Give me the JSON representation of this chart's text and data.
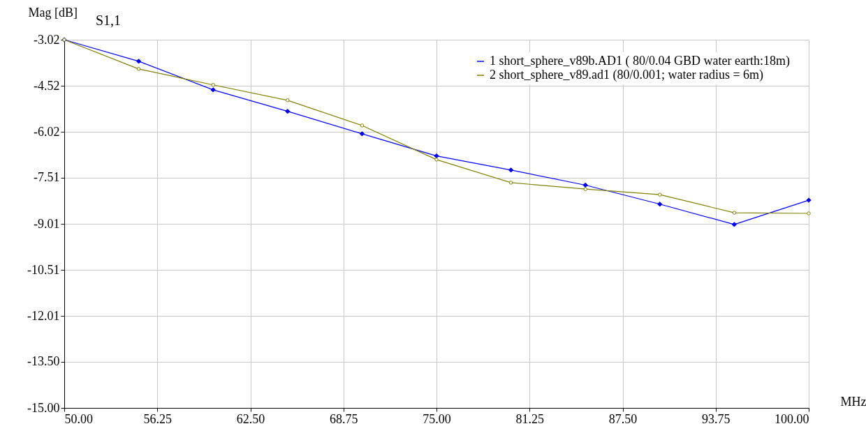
{
  "chart_data": {
    "type": "line",
    "title": "S1,1",
    "ylabel": "Mag [dB]",
    "xlabel": "MHz",
    "x": [
      50,
      55,
      60,
      65,
      70,
      75,
      80,
      85,
      90,
      95,
      100
    ],
    "series": [
      {
        "name": "1 short_sphere_v89b.AD1 ( 80/0.04  GBD water earth:18m)",
        "color": "#0000ff",
        "marker": "diamond",
        "values": [
          -3.02,
          -3.72,
          -4.65,
          -5.35,
          -6.08,
          -6.8,
          -7.26,
          -7.75,
          -8.37,
          -9.03,
          -8.24
        ]
      },
      {
        "name": "2 short_sphere_v89.ad1 (80/0.001; water radius = 6m)",
        "color": "#808000",
        "marker": "circle",
        "values": [
          -3.02,
          -3.97,
          -4.49,
          -4.99,
          -5.81,
          -6.92,
          -7.67,
          -7.88,
          -8.06,
          -8.65,
          -8.67
        ]
      }
    ],
    "xlim": [
      50,
      100
    ],
    "xticks": [
      {
        "value": 50,
        "label": "50.00"
      },
      {
        "value": 56.25,
        "label": "56.25"
      },
      {
        "value": 62.5,
        "label": "62.50"
      },
      {
        "value": 68.75,
        "label": "68.75"
      },
      {
        "value": 75,
        "label": "75.00"
      },
      {
        "value": 81.25,
        "label": "81.25"
      },
      {
        "value": 87.5,
        "label": "87.50"
      },
      {
        "value": 93.75,
        "label": "93.75"
      },
      {
        "value": 100,
        "label": "100.00"
      }
    ],
    "ylim": [
      -15.0,
      -3.02
    ],
    "yticks": [
      {
        "value": -15,
        "label": "-15.00"
      },
      {
        "value": -13.5,
        "label": "-13.50"
      },
      -12.01,
      -10.51,
      -9.01,
      -7.51,
      -6.02,
      -4.52,
      -3.02
    ],
    "grid": true,
    "legend": "top right",
    "line_style": "solid"
  }
}
